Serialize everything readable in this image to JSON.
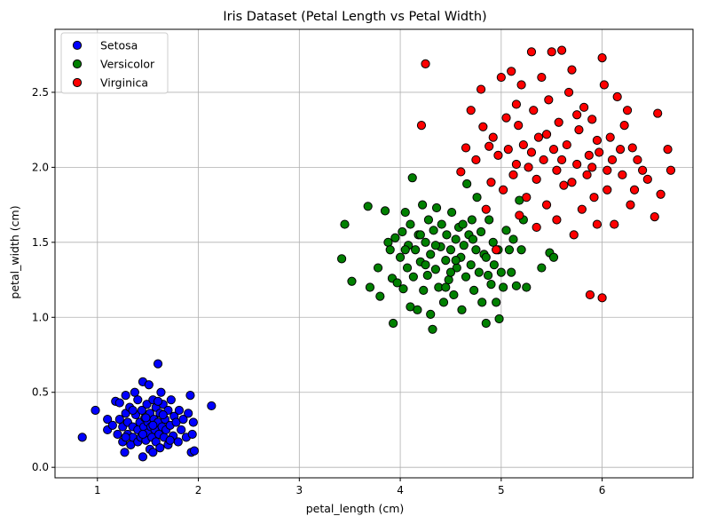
{
  "chart_data": {
    "type": "scatter",
    "title": "Iris Dataset (Petal Length vs Petal Width)",
    "xlabel": "petal_length (cm)",
    "ylabel": "petal_width (cm)",
    "xlim": [
      0.58,
      6.9
    ],
    "ylim": [
      -0.07,
      2.92
    ],
    "xticks": [
      "1",
      "2",
      "3",
      "4",
      "5",
      "6"
    ],
    "yticks": [
      "0.0",
      "0.5",
      "1.0",
      "1.5",
      "2.0",
      "2.5"
    ],
    "grid": true,
    "legend_position": "top-left",
    "series": [
      {
        "name": "Setosa",
        "color": "#0000ff",
        "points": [
          [
            0.85,
            0.2
          ],
          [
            0.98,
            0.38
          ],
          [
            1.1,
            0.32
          ],
          [
            1.1,
            0.25
          ],
          [
            1.15,
            0.28
          ],
          [
            1.18,
            0.44
          ],
          [
            1.2,
            0.22
          ],
          [
            1.22,
            0.32
          ],
          [
            1.22,
            0.43
          ],
          [
            1.25,
            0.17
          ],
          [
            1.25,
            0.27
          ],
          [
            1.27,
            0.1
          ],
          [
            1.28,
            0.36
          ],
          [
            1.28,
            0.48
          ],
          [
            1.3,
            0.22
          ],
          [
            1.3,
            0.3
          ],
          [
            1.32,
            0.4
          ],
          [
            1.33,
            0.15
          ],
          [
            1.35,
            0.27
          ],
          [
            1.35,
            0.2
          ],
          [
            1.37,
            0.5
          ],
          [
            1.38,
            0.35
          ],
          [
            1.4,
            0.17
          ],
          [
            1.4,
            0.25
          ],
          [
            1.4,
            0.45
          ],
          [
            1.42,
            0.3
          ],
          [
            1.43,
            0.2
          ],
          [
            1.44,
            0.38
          ],
          [
            1.45,
            0.07
          ],
          [
            1.45,
            0.57
          ],
          [
            1.46,
            0.27
          ],
          [
            1.47,
            0.33
          ],
          [
            1.48,
            0.18
          ],
          [
            1.49,
            0.42
          ],
          [
            1.5,
            0.23
          ],
          [
            1.5,
            0.3
          ],
          [
            1.51,
            0.55
          ],
          [
            1.52,
            0.12
          ],
          [
            1.52,
            0.36
          ],
          [
            1.53,
            0.27
          ],
          [
            1.54,
            0.2
          ],
          [
            1.55,
            0.45
          ],
          [
            1.55,
            0.1
          ],
          [
            1.56,
            0.32
          ],
          [
            1.57,
            0.25
          ],
          [
            1.58,
            0.4
          ],
          [
            1.58,
            0.17
          ],
          [
            1.6,
            0.3
          ],
          [
            1.6,
            0.69
          ],
          [
            1.61,
            0.22
          ],
          [
            1.62,
            0.36
          ],
          [
            1.62,
            0.13
          ],
          [
            1.63,
            0.5
          ],
          [
            1.64,
            0.27
          ],
          [
            1.65,
            0.42
          ],
          [
            1.66,
            0.2
          ],
          [
            1.67,
            0.32
          ],
          [
            1.68,
            0.25
          ],
          [
            1.7,
            0.38
          ],
          [
            1.7,
            0.15
          ],
          [
            1.72,
            0.28
          ],
          [
            1.73,
            0.45
          ],
          [
            1.75,
            0.21
          ],
          [
            1.76,
            0.34
          ],
          [
            1.78,
            0.3
          ],
          [
            1.8,
            0.17
          ],
          [
            1.81,
            0.38
          ],
          [
            1.83,
            0.25
          ],
          [
            1.85,
            0.32
          ],
          [
            1.88,
            0.2
          ],
          [
            1.9,
            0.36
          ],
          [
            1.92,
            0.48
          ],
          [
            1.93,
            0.1
          ],
          [
            1.94,
            0.22
          ],
          [
            1.95,
            0.3
          ],
          [
            1.96,
            0.11
          ],
          [
            2.13,
            0.41
          ],
          [
            1.35,
            0.38
          ],
          [
            1.45,
            0.22
          ],
          [
            1.65,
            0.35
          ],
          [
            1.55,
            0.28
          ],
          [
            1.72,
            0.18
          ],
          [
            1.28,
            0.2
          ],
          [
            1.6,
            0.44
          ],
          [
            1.48,
            0.33
          ]
        ]
      },
      {
        "name": "Versicolor",
        "color": "#008000",
        "points": [
          [
            3.42,
            1.39
          ],
          [
            3.45,
            1.62
          ],
          [
            3.52,
            1.24
          ],
          [
            3.68,
            1.74
          ],
          [
            3.7,
            1.2
          ],
          [
            3.78,
            1.33
          ],
          [
            3.8,
            1.14
          ],
          [
            3.85,
            1.71
          ],
          [
            3.88,
            1.5
          ],
          [
            3.9,
            1.45
          ],
          [
            3.92,
            1.26
          ],
          [
            3.93,
            0.96
          ],
          [
            3.95,
            1.53
          ],
          [
            3.97,
            1.23
          ],
          [
            4.0,
            1.4
          ],
          [
            4.02,
            1.57
          ],
          [
            4.03,
            1.19
          ],
          [
            4.05,
            1.7
          ],
          [
            4.07,
            1.33
          ],
          [
            4.08,
            1.48
          ],
          [
            4.1,
            1.07
          ],
          [
            4.1,
            1.62
          ],
          [
            4.12,
            1.93
          ],
          [
            4.13,
            1.27
          ],
          [
            4.15,
            1.45
          ],
          [
            4.17,
            1.05
          ],
          [
            4.18,
            1.55
          ],
          [
            4.2,
            1.37
          ],
          [
            4.22,
            1.75
          ],
          [
            4.23,
            1.18
          ],
          [
            4.25,
            1.5
          ],
          [
            4.27,
            1.28
          ],
          [
            4.28,
            1.65
          ],
          [
            4.3,
            1.42
          ],
          [
            4.3,
            1.02
          ],
          [
            4.32,
            0.92
          ],
          [
            4.33,
            1.58
          ],
          [
            4.35,
            1.32
          ],
          [
            4.36,
            1.73
          ],
          [
            4.38,
            1.2
          ],
          [
            4.4,
            1.47
          ],
          [
            4.41,
            1.62
          ],
          [
            4.43,
            1.1
          ],
          [
            4.45,
            1.38
          ],
          [
            4.46,
            1.55
          ],
          [
            4.48,
            1.25
          ],
          [
            4.5,
            1.45
          ],
          [
            4.51,
            1.7
          ],
          [
            4.53,
            1.15
          ],
          [
            4.55,
            1.52
          ],
          [
            4.56,
            1.33
          ],
          [
            4.58,
            1.6
          ],
          [
            4.6,
            1.4
          ],
          [
            4.61,
            1.05
          ],
          [
            4.63,
            1.48
          ],
          [
            4.65,
            1.27
          ],
          [
            4.66,
            1.89
          ],
          [
            4.68,
            1.55
          ],
          [
            4.7,
            1.35
          ],
          [
            4.71,
            1.65
          ],
          [
            4.73,
            1.18
          ],
          [
            4.75,
            1.45
          ],
          [
            4.76,
            1.8
          ],
          [
            4.78,
            1.3
          ],
          [
            4.8,
            1.57
          ],
          [
            4.81,
            1.1
          ],
          [
            4.83,
            1.42
          ],
          [
            4.85,
            0.96
          ],
          [
            4.87,
            1.28
          ],
          [
            4.88,
            1.65
          ],
          [
            4.9,
            1.22
          ],
          [
            4.92,
            1.5
          ],
          [
            4.93,
            1.35
          ],
          [
            4.95,
            1.1
          ],
          [
            4.97,
            1.45
          ],
          [
            4.98,
            0.99
          ],
          [
            5.0,
            1.3
          ],
          [
            5.02,
            1.2
          ],
          [
            5.05,
            1.58
          ],
          [
            5.08,
            1.45
          ],
          [
            5.1,
            1.3
          ],
          [
            5.12,
            1.52
          ],
          [
            5.15,
            1.21
          ],
          [
            5.18,
            1.78
          ],
          [
            5.2,
            1.45
          ],
          [
            5.22,
            1.65
          ],
          [
            5.25,
            1.2
          ],
          [
            5.4,
            1.33
          ],
          [
            5.48,
            1.43
          ],
          [
            5.52,
            1.4
          ],
          [
            4.2,
            1.55
          ],
          [
            4.35,
            1.48
          ],
          [
            4.55,
            1.38
          ],
          [
            4.62,
            1.62
          ],
          [
            4.72,
            1.52
          ],
          [
            4.45,
            1.2
          ],
          [
            4.25,
            1.35
          ],
          [
            4.05,
            1.45
          ],
          [
            4.85,
            1.4
          ],
          [
            4.5,
            1.3
          ]
        ]
      },
      {
        "name": "Virginica",
        "color": "#ff0000",
        "points": [
          [
            4.21,
            2.28
          ],
          [
            4.25,
            2.69
          ],
          [
            4.6,
            1.97
          ],
          [
            4.65,
            2.13
          ],
          [
            4.7,
            2.38
          ],
          [
            4.75,
            2.05
          ],
          [
            4.8,
            2.52
          ],
          [
            4.82,
            2.27
          ],
          [
            4.85,
            1.72
          ],
          [
            4.88,
            2.14
          ],
          [
            4.9,
            1.9
          ],
          [
            4.92,
            2.2
          ],
          [
            4.95,
            1.45
          ],
          [
            4.97,
            2.08
          ],
          [
            5.0,
            2.6
          ],
          [
            5.02,
            1.85
          ],
          [
            5.05,
            2.33
          ],
          [
            5.07,
            2.12
          ],
          [
            5.1,
            2.64
          ],
          [
            5.12,
            1.95
          ],
          [
            5.15,
            2.42
          ],
          [
            5.17,
            2.28
          ],
          [
            5.18,
            1.68
          ],
          [
            5.2,
            2.55
          ],
          [
            5.22,
            2.15
          ],
          [
            5.25,
            1.8
          ],
          [
            5.27,
            2.0
          ],
          [
            5.3,
            2.77
          ],
          [
            5.32,
            2.38
          ],
          [
            5.35,
            1.92
          ],
          [
            5.37,
            2.2
          ],
          [
            5.4,
            2.6
          ],
          [
            5.42,
            2.05
          ],
          [
            5.45,
            1.75
          ],
          [
            5.47,
            2.45
          ],
          [
            5.5,
            2.77
          ],
          [
            5.52,
            2.12
          ],
          [
            5.55,
            1.98
          ],
          [
            5.57,
            2.3
          ],
          [
            5.6,
            2.78
          ],
          [
            5.62,
            1.88
          ],
          [
            5.65,
            2.15
          ],
          [
            5.67,
            2.5
          ],
          [
            5.7,
            2.65
          ],
          [
            5.72,
            1.55
          ],
          [
            5.75,
            2.02
          ],
          [
            5.77,
            2.25
          ],
          [
            5.8,
            1.72
          ],
          [
            5.82,
            2.4
          ],
          [
            5.85,
            1.95
          ],
          [
            5.87,
            2.08
          ],
          [
            5.88,
            1.15
          ],
          [
            5.9,
            2.32
          ],
          [
            5.92,
            1.8
          ],
          [
            5.95,
            2.18
          ],
          [
            5.97,
            2.1
          ],
          [
            6.0,
            1.13
          ],
          [
            6.0,
            2.73
          ],
          [
            6.02,
            2.55
          ],
          [
            6.05,
            1.85
          ],
          [
            6.08,
            2.2
          ],
          [
            6.1,
            2.05
          ],
          [
            6.12,
            1.62
          ],
          [
            6.15,
            2.47
          ],
          [
            6.18,
            2.12
          ],
          [
            6.2,
            1.95
          ],
          [
            6.22,
            2.28
          ],
          [
            6.25,
            2.38
          ],
          [
            6.28,
            1.75
          ],
          [
            6.3,
            2.13
          ],
          [
            6.32,
            1.85
          ],
          [
            6.35,
            2.05
          ],
          [
            6.4,
            1.98
          ],
          [
            6.45,
            1.92
          ],
          [
            6.52,
            1.67
          ],
          [
            6.55,
            2.36
          ],
          [
            6.58,
            1.82
          ],
          [
            6.65,
            2.12
          ],
          [
            6.68,
            1.98
          ],
          [
            5.3,
            2.1
          ],
          [
            5.45,
            2.22
          ],
          [
            5.6,
            2.05
          ],
          [
            5.75,
            2.35
          ],
          [
            5.9,
            2.0
          ],
          [
            6.05,
            1.98
          ],
          [
            5.15,
            2.02
          ],
          [
            5.35,
            1.6
          ],
          [
            5.55,
            1.65
          ],
          [
            5.7,
            1.9
          ],
          [
            5.95,
            1.62
          ]
        ]
      }
    ]
  }
}
